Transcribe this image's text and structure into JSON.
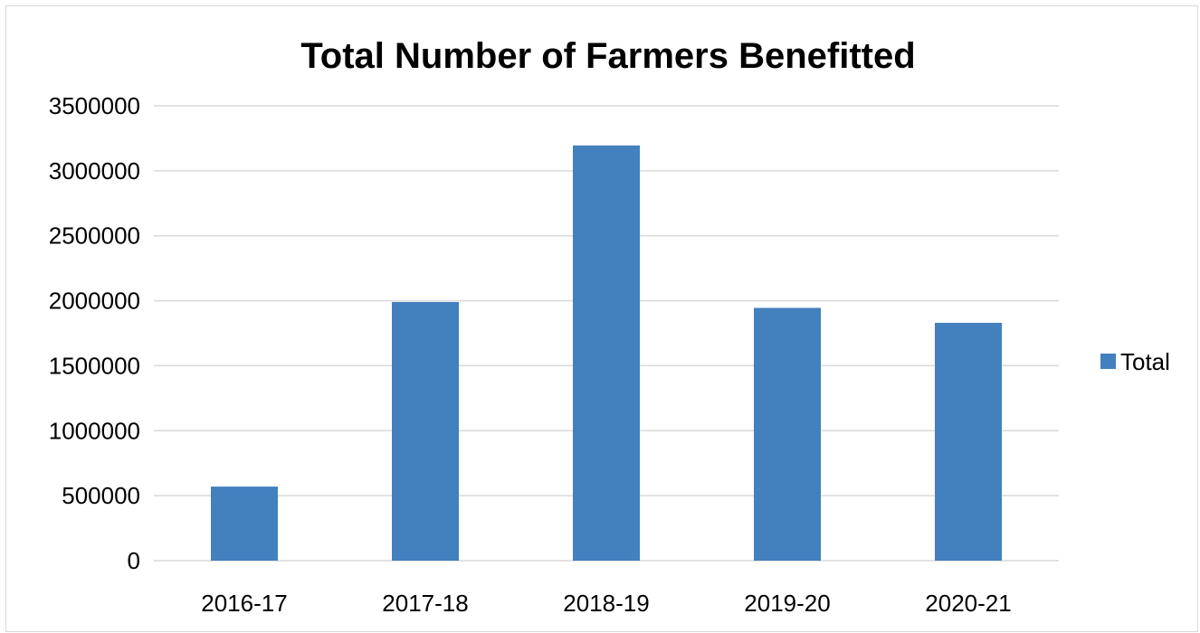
{
  "chart_data": {
    "type": "bar",
    "title": "Total Number of Farmers Benefitted",
    "xlabel": "",
    "ylabel": "",
    "categories": [
      "2016-17",
      "2017-18",
      "2018-19",
      "2019-20",
      "2020-21"
    ],
    "series": [
      {
        "name": "Total",
        "color": "#4380be",
        "values": [
          570000,
          1990000,
          3195000,
          1945000,
          1830000
        ]
      }
    ],
    "ylim": [
      0,
      3500000
    ],
    "yticks": [
      "0",
      "500000",
      "1000000",
      "1500000",
      "2000000",
      "2500000",
      "3000000",
      "3500000"
    ],
    "grid": true,
    "legend": "right"
  }
}
